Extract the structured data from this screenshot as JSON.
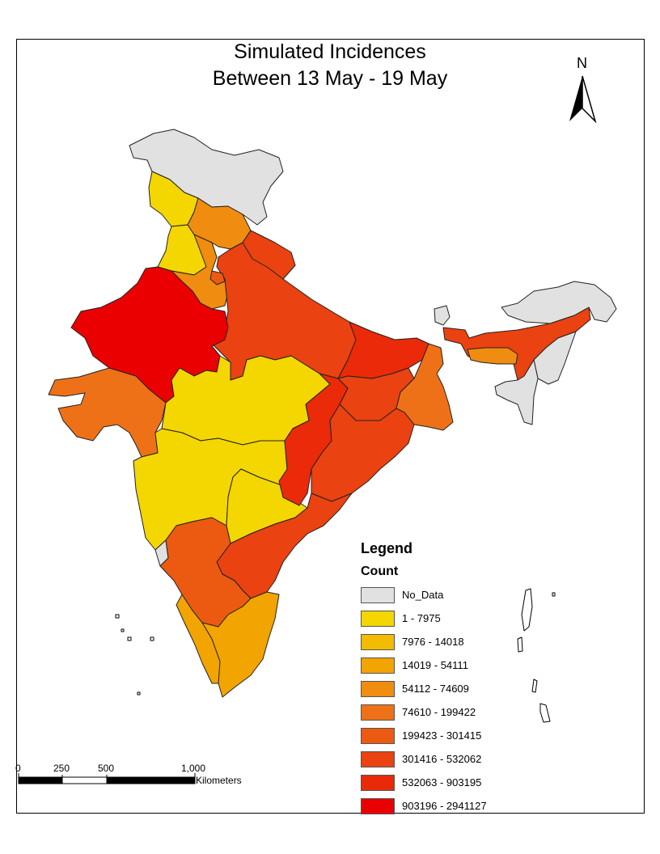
{
  "title": {
    "line1": "Simulated Incidences",
    "line2": "Between 13 May - 19 May"
  },
  "north_arrow": {
    "label": "N"
  },
  "legend": {
    "title": "Legend",
    "field": "Count",
    "classes": [
      {
        "label": "No_Data",
        "color": "#e1e1e1"
      },
      {
        "label": "1 - 7975",
        "color": "#f4d600"
      },
      {
        "label": "7976 - 14018",
        "color": "#f3bc00"
      },
      {
        "label": "14019 - 54111",
        "color": "#f2a400"
      },
      {
        "label": "54112 - 74609",
        "color": "#f08c10"
      },
      {
        "label": "74610 - 199422",
        "color": "#ee7118"
      },
      {
        "label": "199423 - 301415",
        "color": "#ec5a12"
      },
      {
        "label": "301416 - 532062",
        "color": "#ea4210"
      },
      {
        "label": "532063 - 903195",
        "color": "#e92a08"
      },
      {
        "label": "903196 - 2941127",
        "color": "#ea0000"
      }
    ]
  },
  "scale_bar": {
    "ticks": [
      "0",
      "250",
      "500",
      "1,000"
    ],
    "unit": "Kilometers"
  }
}
